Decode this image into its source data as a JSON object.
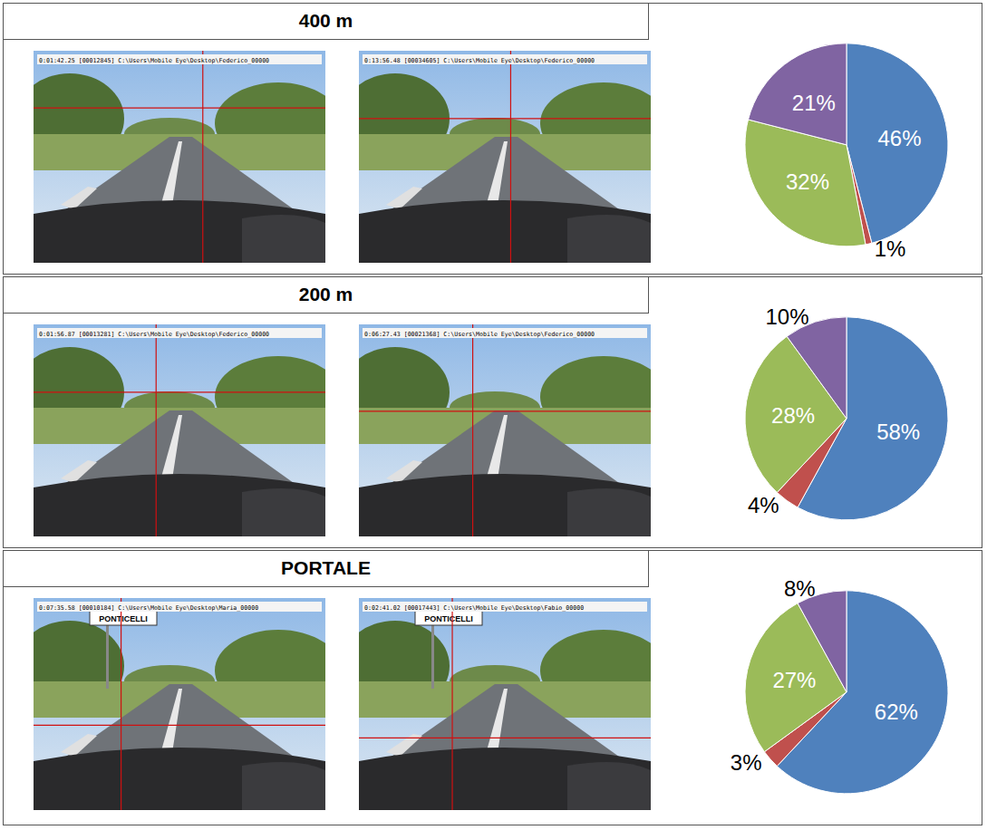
{
  "chart_data": [
    {
      "type": "pie",
      "title": "400 m",
      "values": [
        46,
        1,
        32,
        21
      ],
      "value_labels": [
        "46%",
        "1%",
        "32%",
        "21%"
      ],
      "colors": [
        "#4f81bd",
        "#c0504d",
        "#9bbb59",
        "#8064a2"
      ],
      "data_labels": true
    },
    {
      "type": "pie",
      "title": "200 m",
      "values": [
        58,
        4,
        28,
        10
      ],
      "value_labels": [
        "58%",
        "4%",
        "28%",
        "10%"
      ],
      "colors": [
        "#4f81bd",
        "#c0504d",
        "#9bbb59",
        "#8064a2"
      ],
      "data_labels": true
    },
    {
      "type": "pie",
      "title": "PORTALE",
      "values": [
        62,
        3,
        27,
        8
      ],
      "value_labels": [
        "62%",
        "3%",
        "27%",
        "8%"
      ],
      "colors": [
        "#4f81bd",
        "#c0504d",
        "#9bbb59",
        "#8064a2"
      ],
      "data_labels": true
    }
  ],
  "photos": [
    [
      {
        "overlay": "0:01:42.25 [00012845] C:\\Users\\Mobile Eye\\Desktop\\Federico_00000"
      },
      {
        "overlay": "0:13:56.48 [00034605] C:\\Users\\Mobile Eye\\Desktop\\Federico_00000"
      }
    ],
    [
      {
        "overlay": "0:01:56.87 [00013281] C:\\Users\\Mobile Eye\\Desktop\\Federico_00000"
      },
      {
        "overlay": "0:06:27.43 [00021368] C:\\Users\\Mobile Eye\\Desktop\\Federico_00000"
      }
    ],
    [
      {
        "overlay": "0:07:35.58 [00010184] C:\\Users\\Mobile Eye\\Desktop\\Maria_00000",
        "sign": "PONTICELLI"
      },
      {
        "overlay": "0:02:41.02 [00017443] C:\\Users\\Mobile Eye\\Desktop\\Fabio_00000",
        "sign": "PONTICELLI"
      }
    ]
  ]
}
